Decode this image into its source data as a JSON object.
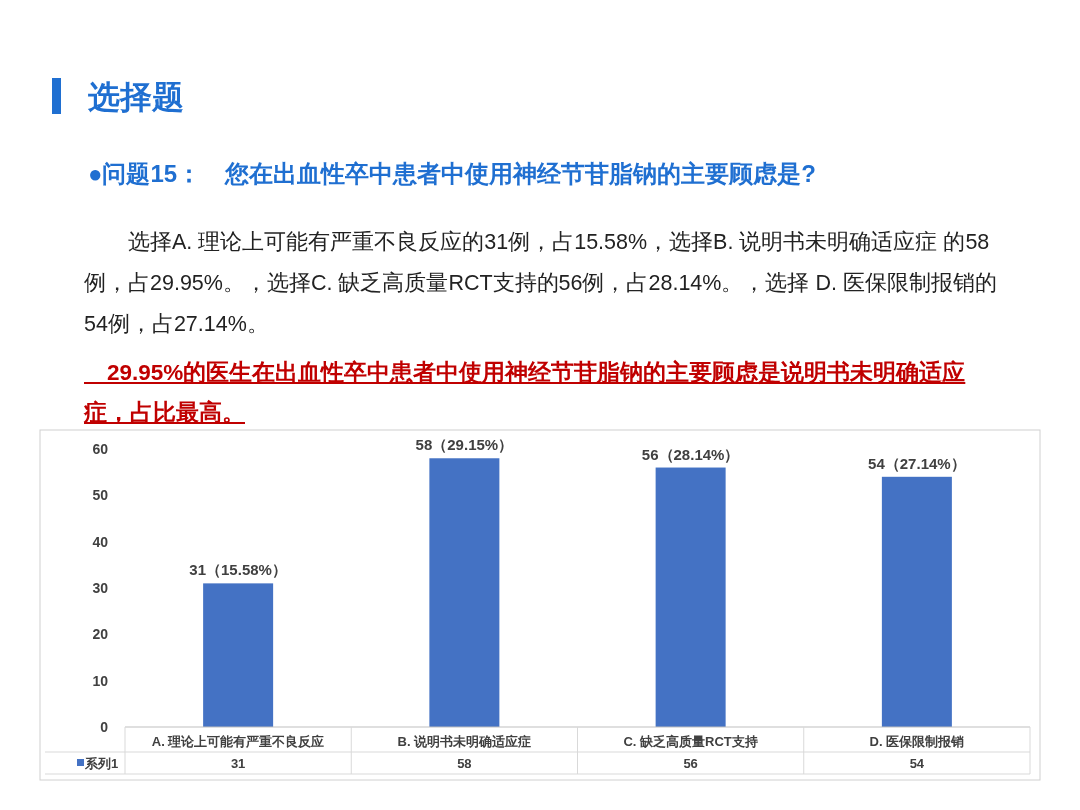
{
  "chart_data": {
    "type": "bar",
    "title": "选择题",
    "subtitle": "●问题15：　您在出血性卒中患者中使用神经节苷脂钠的主要顾虑是?",
    "annotations": [
      "　　选择A. 理论上可能有严重不良反应的31例，占15.58%，选择B. 说明书未明确适应症 的58例，占29.95%。，选择C. 缺乏高质量RCT支持的56例，占28.14%。，选择 D. 医保限制报销的54例，占27.14%。",
      "　29.95%的医生在出血性卒中患者中使用神经节苷脂钠的主要顾虑是说明书未明确适应症，占比最高。",
      {
        "text": "31（15.58%）",
        "x": "A. 理论上可能有严重不良反应",
        "y": 31
      },
      {
        "text": "58（29.15%）",
        "x": "B. 说明书未明确适应症",
        "y": 58
      },
      {
        "text": "56（28.14%）",
        "x": "C. 缺乏高质量RCT支持",
        "y": 56
      },
      {
        "text": "54（27.14%）",
        "x": "D. 医保限制报销",
        "y": 54
      }
    ],
    "categories": [
      "A. 理论上可能有严重不良反应",
      "B. 说明书未明确适应症",
      "C. 缺乏高质量RCT支持",
      "D. 医保限制报销"
    ],
    "series": [
      {
        "name": "系列1",
        "color": "#4472c4",
        "values": [
          31,
          58,
          56,
          54
        ]
      }
    ],
    "ylim": [
      0,
      60
    ],
    "yticks": [
      0,
      10,
      20,
      30,
      40,
      50,
      60
    ],
    "grid": false,
    "legend": "bottom",
    "data_labels": true
  }
}
